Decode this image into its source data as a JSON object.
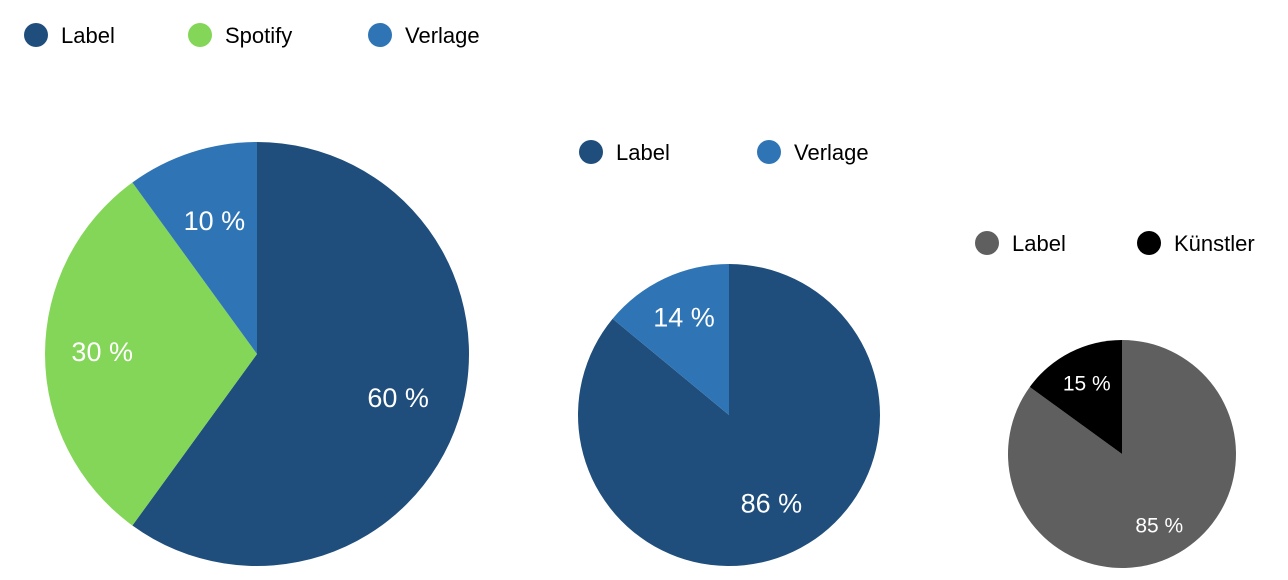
{
  "chart_data": [
    {
      "type": "pie",
      "legend_position": "top-left",
      "slices": [
        {
          "name": "Label",
          "value": 60,
          "label": "60 %",
          "color": "#1f4e7d"
        },
        {
          "name": "Spotify",
          "value": 30,
          "label": "30 %",
          "color": "#83d657"
        },
        {
          "name": "Verlage",
          "value": 10,
          "label": "10 %",
          "color": "#2f75b5"
        }
      ]
    },
    {
      "type": "pie",
      "legend_position": "top",
      "slices": [
        {
          "name": "Label",
          "value": 86,
          "label": "86 %",
          "color": "#1f4e7d"
        },
        {
          "name": "Verlage",
          "value": 14,
          "label": "14 %",
          "color": "#2f75b5"
        }
      ]
    },
    {
      "type": "pie",
      "legend_position": "top",
      "slices": [
        {
          "name": "Label",
          "value": 85,
          "label": "85 %",
          "color": "#5f5f5f"
        },
        {
          "name": "Künstler",
          "value": 15,
          "label": "15 %",
          "color": "#000000"
        }
      ]
    }
  ]
}
